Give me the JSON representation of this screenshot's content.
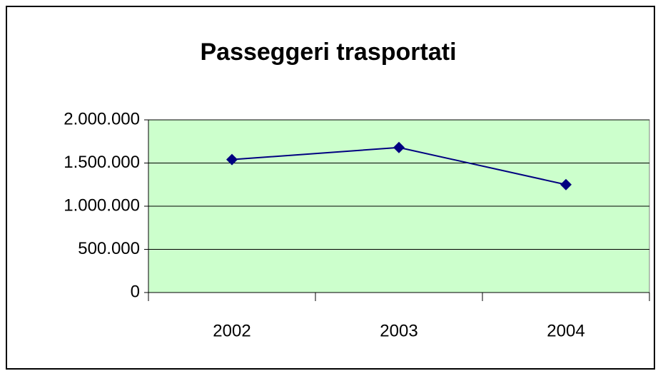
{
  "chart_data": {
    "type": "line",
    "title": "Passeggeri trasportati",
    "categories": [
      "2002",
      "2003",
      "2004"
    ],
    "series": [
      {
        "name": "Passeggeri trasportati",
        "color": "#000080",
        "values": [
          1540000,
          1680000,
          1250000
        ]
      }
    ],
    "ylim": [
      0,
      2000000
    ],
    "yticks": [
      0,
      {
        "value": 500000,
        "label": "500.000"
      },
      {
        "value": 1000000,
        "label": "1.000.000"
      },
      {
        "value": 1500000,
        "label": "1.500.000"
      },
      {
        "value": 2000000,
        "label": "2.000.000"
      }
    ],
    "grid": true,
    "plot_background": "#ccffcc"
  }
}
